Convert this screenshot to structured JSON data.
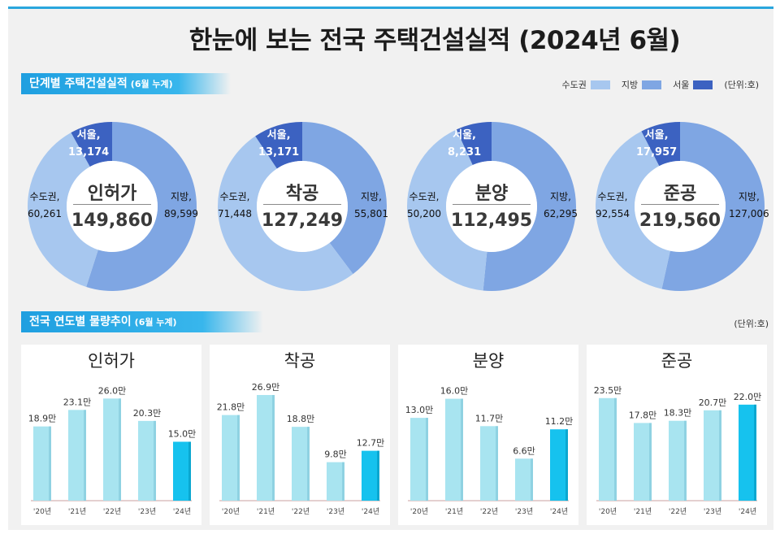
{
  "title": "한눈에 보는 전국 주택건설실적  (2024년 6월)",
  "section1": {
    "label": "단계별 주택건설실적",
    "sub": "(6월 누계)"
  },
  "section2": {
    "label": "전국 연도별 물량추이",
    "sub": "(6월 누계)"
  },
  "legend": {
    "items": [
      {
        "name": "수도권",
        "color": "#a7c7ef"
      },
      {
        "name": "지방",
        "color": "#7fa6e3"
      },
      {
        "name": "서울",
        "color": "#3c62c1"
      }
    ],
    "unit": "(단위:호)"
  },
  "unit2": "(단위:호)",
  "chart_data": [
    {
      "type": "pie",
      "title": "인허가",
      "total": "149,860",
      "slices": [
        {
          "name": "지방",
          "value": 89599,
          "label": "지방,",
          "value_label": "89,599"
        },
        {
          "name": "수도권",
          "value": 60261,
          "label": "수도권,",
          "value_label": "60,261"
        },
        {
          "name": "서울",
          "value": 13174,
          "label": "서울,",
          "value_label": "13,174"
        }
      ]
    },
    {
      "type": "pie",
      "title": "착공",
      "total": "127,249",
      "slices": [
        {
          "name": "지방",
          "value": 55801,
          "label": "지방,",
          "value_label": "55,801"
        },
        {
          "name": "수도권",
          "value": 71448,
          "label": "수도권,",
          "value_label": "71,448"
        },
        {
          "name": "서울",
          "value": 13171,
          "label": "서울,",
          "value_label": "13,171"
        }
      ]
    },
    {
      "type": "pie",
      "title": "분양",
      "total": "112,495",
      "slices": [
        {
          "name": "지방",
          "value": 62295,
          "label": "지방,",
          "value_label": "62,295"
        },
        {
          "name": "수도권",
          "value": 50200,
          "label": "수도권,",
          "value_label": "50,200"
        },
        {
          "name": "서울",
          "value": 8231,
          "label": "서울,",
          "value_label": "8,231"
        }
      ]
    },
    {
      "type": "pie",
      "title": "준공",
      "total": "219,560",
      "slices": [
        {
          "name": "지방",
          "value": 127006,
          "label": "지방,",
          "value_label": "127,006"
        },
        {
          "name": "수도권",
          "value": 92554,
          "label": "수도권,",
          "value_label": "92,554"
        },
        {
          "name": "서울",
          "value": 17957,
          "label": "서울,",
          "value_label": "17,957"
        }
      ]
    },
    {
      "type": "bar",
      "title": "인허가",
      "categories": [
        "'20년",
        "'21년",
        "'22년",
        "'23년",
        "'24년"
      ],
      "values": [
        18.9,
        23.1,
        26.0,
        20.3,
        15.0
      ],
      "labels": [
        "18.9만",
        "23.1만",
        "26.0만",
        "20.3만",
        "15.0만"
      ],
      "ylim": [
        0,
        30
      ]
    },
    {
      "type": "bar",
      "title": "착공",
      "categories": [
        "'20년",
        "'21년",
        "'22년",
        "'23년",
        "'24년"
      ],
      "values": [
        21.8,
        26.9,
        18.8,
        9.8,
        12.7
      ],
      "labels": [
        "21.8만",
        "26.9만",
        "18.8만",
        "9.8만",
        "12.7만"
      ],
      "ylim": [
        0,
        30
      ]
    },
    {
      "type": "bar",
      "title": "분양",
      "categories": [
        "'20년",
        "'21년",
        "'22년",
        "'23년",
        "'24년"
      ],
      "values": [
        13.0,
        16.0,
        11.7,
        6.6,
        11.2
      ],
      "labels": [
        "13.0만",
        "16.0만",
        "11.7만",
        "6.6만",
        "11.2만"
      ],
      "ylim": [
        0,
        18.5
      ]
    },
    {
      "type": "bar",
      "title": "준공",
      "categories": [
        "'20년",
        "'21년",
        "'22년",
        "'23년",
        "'24년"
      ],
      "values": [
        23.5,
        17.8,
        18.3,
        20.7,
        22.0
      ],
      "labels": [
        "23.5만",
        "17.8만",
        "18.3만",
        "20.7만",
        "22.0만"
      ],
      "ylim": [
        0,
        27
      ]
    }
  ],
  "colors": {
    "donut_outer": "#a7c7ef",
    "highlight_bar": "#16c2ee",
    "past_bar": "#a8e4f0"
  }
}
